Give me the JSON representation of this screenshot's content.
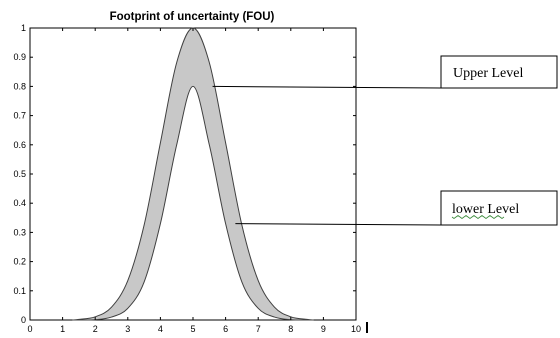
{
  "chart_data": {
    "type": "area",
    "title": "Footprint of uncertainty (FOU)",
    "xlabel": "",
    "ylabel": "",
    "xlim": [
      0,
      10
    ],
    "ylim": [
      0,
      1
    ],
    "x_ticks": [
      "0",
      "1",
      "2",
      "3",
      "4",
      "5",
      "6",
      "7",
      "8",
      "9",
      "10"
    ],
    "y_ticks": [
      "0",
      "0.1",
      "0.2",
      "0.3",
      "0.4",
      "0.5",
      "0.6",
      "0.7",
      "0.8",
      "0.9",
      "1"
    ],
    "grid": false,
    "fill_color": "#c8c8c8",
    "line_color": "#404040",
    "x": [
      1.3,
      1.5,
      2.0,
      2.5,
      3.0,
      3.5,
      4.0,
      4.5,
      5.0,
      5.5,
      6.0,
      6.5,
      7.0,
      7.5,
      8.0,
      8.5,
      8.7
    ],
    "series": [
      {
        "role": "upper",
        "values": [
          0.0,
          0.002,
          0.011,
          0.044,
          0.135,
          0.325,
          0.607,
          0.882,
          1.0,
          0.882,
          0.607,
          0.325,
          0.135,
          0.044,
          0.011,
          0.002,
          0.0
        ]
      },
      {
        "role": "lower",
        "values": [
          0.0,
          0.0,
          0.001,
          0.01,
          0.04,
          0.13,
          0.33,
          0.6,
          0.8,
          0.6,
          0.33,
          0.13,
          0.04,
          0.01,
          0.001,
          0.0,
          0.0
        ]
      }
    ],
    "annotations": [
      {
        "text": "Upper Level",
        "target_x": 5.6,
        "target_y": 0.8
      },
      {
        "text": "lower Level",
        "target_x": 6.3,
        "target_y": 0.33
      }
    ]
  }
}
